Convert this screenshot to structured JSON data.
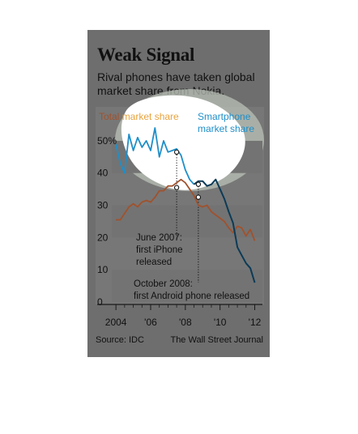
{
  "header": {
    "title": "Weak Signal",
    "subtitle": "Rival phones have taken global market share from Nokia."
  },
  "footer": {
    "source": "Source: IDC",
    "publisher": "The Wall Street Journal"
  },
  "colors": {
    "total": "#a0522d",
    "total_label": "#e8a33c",
    "smartphone": "#1f8fc9",
    "smartphone_dark": "#0b3b57",
    "highlight": "#ffffff",
    "card": "#6e6e6e"
  },
  "chart_data": {
    "type": "line",
    "title": "Weak Signal",
    "subtitle": "Rival phones have taken global market share from Nokia.",
    "xlabel": "",
    "ylabel": "",
    "xlim": [
      2003.9,
      2012.35
    ],
    "ylim": [
      0,
      55
    ],
    "y_ticks": [
      0,
      10,
      20,
      30,
      40,
      50
    ],
    "y_tick_labels": [
      "0",
      "10",
      "20",
      "30",
      "40",
      "50%"
    ],
    "x_ticks": [
      2004,
      2006,
      2008,
      2010,
      2012
    ],
    "x_tick_labels": [
      "2004",
      "'06",
      "'08",
      "'10",
      "'12"
    ],
    "grid": false,
    "legend": "top",
    "series": [
      {
        "name": "Total market share",
        "label_lines": [
          "Total market share"
        ],
        "x": [
          2004.0,
          2004.25,
          2004.5,
          2004.75,
          2005.0,
          2005.25,
          2005.5,
          2005.75,
          2006.0,
          2006.25,
          2006.5,
          2006.75,
          2007.0,
          2007.25,
          2007.5,
          2007.75,
          2008.0,
          2008.25,
          2008.5,
          2008.75,
          2009.0,
          2009.25,
          2009.5,
          2009.75,
          2010.0,
          2010.25,
          2010.5,
          2010.75,
          2011.0,
          2011.25,
          2011.5,
          2011.75,
          2012.0
        ],
        "values": [
          25.5,
          25.5,
          27.5,
          29.5,
          30.5,
          29.5,
          31.0,
          31.5,
          31.0,
          32.5,
          34.5,
          34.5,
          36.0,
          36.0,
          37.0,
          38.0,
          37.0,
          35.0,
          33.0,
          30.0,
          29.5,
          30.0,
          28.0,
          27.0,
          26.0,
          25.0,
          23.0,
          21.5,
          23.5,
          23.0,
          20.5,
          22.5,
          19.0
        ]
      },
      {
        "name": "Smartphone market share",
        "label_lines": [
          "Smartphone",
          "market share"
        ],
        "x": [
          2004.0,
          2004.25,
          2004.5,
          2004.75,
          2005.0,
          2005.25,
          2005.5,
          2005.75,
          2006.0,
          2006.25,
          2006.5,
          2006.75,
          2007.0,
          2007.25,
          2007.5,
          2007.75,
          2008.0,
          2008.25,
          2008.5,
          2008.75,
          2009.0,
          2009.25,
          2009.5,
          2009.75,
          2010.0,
          2010.25,
          2010.5,
          2010.75,
          2011.0,
          2011.25,
          2011.5,
          2011.75,
          2012.0
        ],
        "values": [
          49.0,
          43.0,
          40.0,
          52.0,
          47.0,
          51.0,
          48.0,
          50.0,
          47.0,
          54.0,
          45.0,
          50.0,
          46.5,
          47.0,
          47.5,
          45.5,
          41.0,
          38.0,
          36.5,
          37.5,
          37.5,
          36.0,
          36.5,
          38.0,
          35.0,
          32.0,
          28.0,
          24.5,
          17.0,
          14.5,
          12.0,
          10.5,
          6.0
        ]
      }
    ],
    "annotations": [
      {
        "label_lines": [
          "June 2007:",
          "first iPhone",
          "released"
        ],
        "x": 2007.5
      },
      {
        "label_lines": [
          "October 2008:",
          "first Android phone released"
        ],
        "x": 2008.75
      }
    ]
  }
}
